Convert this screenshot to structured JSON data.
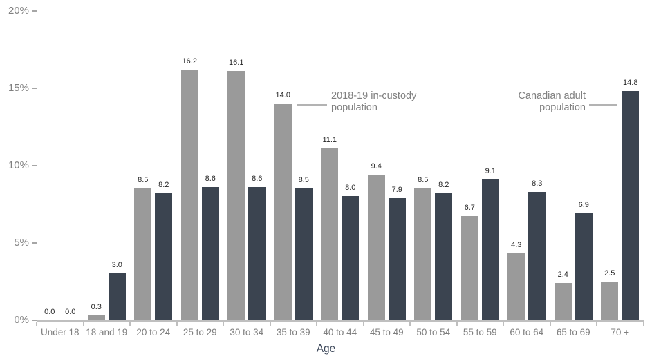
{
  "chart_data": {
    "type": "bar",
    "xlabel": "Age",
    "ylim": [
      0,
      20
    ],
    "yticks": [
      0,
      5,
      10,
      15,
      20
    ],
    "ytick_labels": [
      "0%",
      "5%",
      "10%",
      "15%",
      "20%"
    ],
    "grid": false,
    "legend_position": "inline-annotations",
    "value_label_format": "one-decimal",
    "categories": [
      "Under 18",
      "18 and 19",
      "20 to 24",
      "25 to 29",
      "30 to 34",
      "35 to 39",
      "40 to 44",
      "45 to 49",
      "50 to 54",
      "55 to 59",
      "60 to 64",
      "65 to 69",
      "70 +"
    ],
    "series": [
      {
        "name": "2018-19 in-custody population",
        "color": "#9a9a9a",
        "values": [
          0.0,
          0.3,
          8.5,
          16.2,
          16.1,
          14.0,
          11.1,
          9.4,
          8.5,
          6.7,
          4.3,
          2.4,
          2.5
        ]
      },
      {
        "name": "Canadian adult population",
        "color": "#3b4450",
        "values": [
          0.0,
          3.0,
          8.2,
          8.6,
          8.6,
          8.5,
          8.0,
          7.9,
          8.2,
          9.1,
          8.3,
          6.9,
          14.8
        ]
      }
    ],
    "annotations": [
      {
        "id": "in-custody",
        "lines": [
          "2018-19 in-custody",
          "population"
        ],
        "points_to_category": "35 to 39",
        "points_to_series": "2018-19 in-custody population"
      },
      {
        "id": "canadian-adult",
        "lines": [
          "Canadian adult",
          "population"
        ],
        "points_to_category": "70 +",
        "points_to_series": "Canadian adult population"
      }
    ]
  },
  "colors": {
    "in_custody_bar": "#9a9a9a",
    "canadian_adult_bar": "#3b4450",
    "axis_line": "#bfbfbf",
    "axis_labels": "#7f7f7f",
    "value_labels": "#262626",
    "annotation_text": "#808080",
    "x_axis_title": "#3f4a5c",
    "background": "#ffffff"
  }
}
